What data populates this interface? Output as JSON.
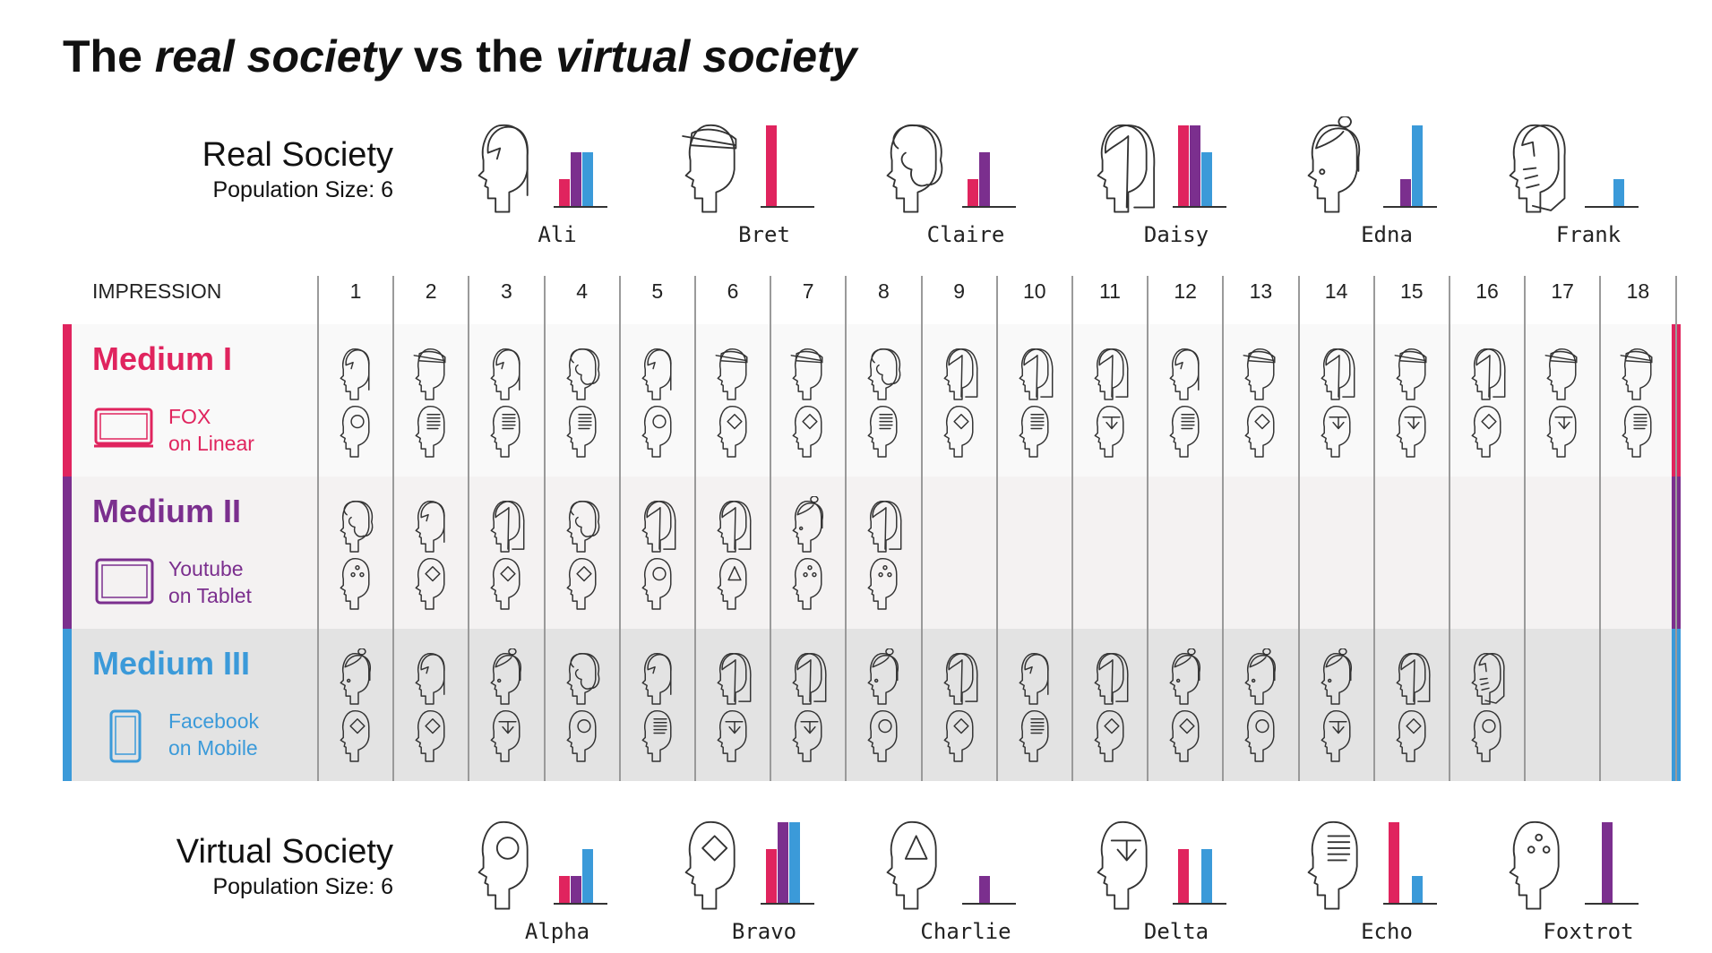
{
  "title": {
    "prefix": "The ",
    "real": "real society",
    "middle": " vs the ",
    "virtual": "virtual society"
  },
  "colors": {
    "medium1": "#e0245e",
    "medium2": "#7b2f8e",
    "medium3": "#3b9ad9",
    "band1": "#f9f9f9",
    "band2": "#f4f2f2",
    "band3": "#e3e3e3",
    "grid": "#9a9a9a"
  },
  "real_society": {
    "name": "Real Society",
    "size_label": "Population Size: 6",
    "people": [
      {
        "name": "Ali",
        "icon": "short-hair-head-icon",
        "bars": [
          1,
          2,
          2
        ]
      },
      {
        "name": "Bret",
        "icon": "cap-head-icon",
        "bars": [
          3,
          0,
          0
        ]
      },
      {
        "name": "Claire",
        "icon": "curly-hair-head-icon",
        "bars": [
          1,
          2,
          0
        ]
      },
      {
        "name": "Daisy",
        "icon": "long-hair-head-icon",
        "bars": [
          3,
          3,
          2
        ]
      },
      {
        "name": "Edna",
        "icon": "bun-hair-head-icon",
        "bars": [
          0,
          1,
          3
        ]
      },
      {
        "name": "Frank",
        "icon": "bearded-head-icon",
        "bars": [
          0,
          0,
          1
        ]
      }
    ]
  },
  "virtual_society": {
    "name": "Virtual Society",
    "size_label": "Population Size: 6",
    "people": [
      {
        "name": "Alpha",
        "icon": "circle-head-icon",
        "bars": [
          1,
          1,
          2
        ]
      },
      {
        "name": "Bravo",
        "icon": "diamond-head-icon",
        "bars": [
          2,
          3,
          3
        ]
      },
      {
        "name": "Charlie",
        "icon": "triangle-head-icon",
        "bars": [
          0,
          1,
          0
        ]
      },
      {
        "name": "Delta",
        "icon": "star-head-icon",
        "bars": [
          2,
          0,
          2
        ]
      },
      {
        "name": "Echo",
        "icon": "lines-head-icon",
        "bars": [
          3,
          0,
          1
        ]
      },
      {
        "name": "Foxtrot",
        "icon": "dots-head-icon",
        "bars": [
          0,
          3,
          0
        ]
      }
    ]
  },
  "impression_label": "IMPRESSION",
  "impressions": [
    "1",
    "2",
    "3",
    "4",
    "5",
    "6",
    "7",
    "8",
    "9",
    "10",
    "11",
    "12",
    "13",
    "14",
    "15",
    "16",
    "17",
    "18"
  ],
  "mediums": [
    {
      "title": "Medium I",
      "line1": "FOX",
      "line2": "on Linear",
      "device": "tv-icon",
      "real": [
        "ali",
        "bret",
        "ali",
        "claire",
        "ali",
        "bret",
        "bret",
        "claire",
        "daisy",
        "daisy",
        "daisy",
        "ali",
        "bret",
        "daisy",
        "bret",
        "daisy",
        "bret",
        "bret"
      ],
      "virtual": [
        "alpha",
        "echo",
        "echo",
        "echo",
        "alpha",
        "bravo",
        "bravo",
        "echo",
        "bravo",
        "echo",
        "delta",
        "echo",
        "bravo",
        "delta",
        "delta",
        "bravo",
        "delta",
        "echo"
      ]
    },
    {
      "title": "Medium II",
      "line1": "Youtube",
      "line2": "on Tablet",
      "device": "tablet-icon",
      "real": [
        "claire",
        "ali",
        "daisy",
        "claire",
        "daisy",
        "daisy",
        "edna",
        "daisy"
      ],
      "virtual": [
        "foxtrot",
        "bravo",
        "bravo",
        "bravo",
        "alpha",
        "charlie",
        "foxtrot",
        "foxtrot"
      ]
    },
    {
      "title": "Medium III",
      "line1": "Facebook",
      "line2": "on Mobile",
      "device": "mobile-icon",
      "real": [
        "edna",
        "ali",
        "edna",
        "claire",
        "ali",
        "daisy",
        "daisy",
        "edna",
        "daisy",
        "ali",
        "daisy",
        "edna",
        "edna",
        "edna",
        "daisy",
        "frank"
      ],
      "virtual": [
        "bravo",
        "bravo",
        "delta",
        "alpha",
        "echo",
        "delta",
        "delta",
        "alpha",
        "bravo",
        "echo",
        "bravo",
        "bravo",
        "alpha",
        "delta",
        "bravo",
        "alpha"
      ]
    }
  ]
}
